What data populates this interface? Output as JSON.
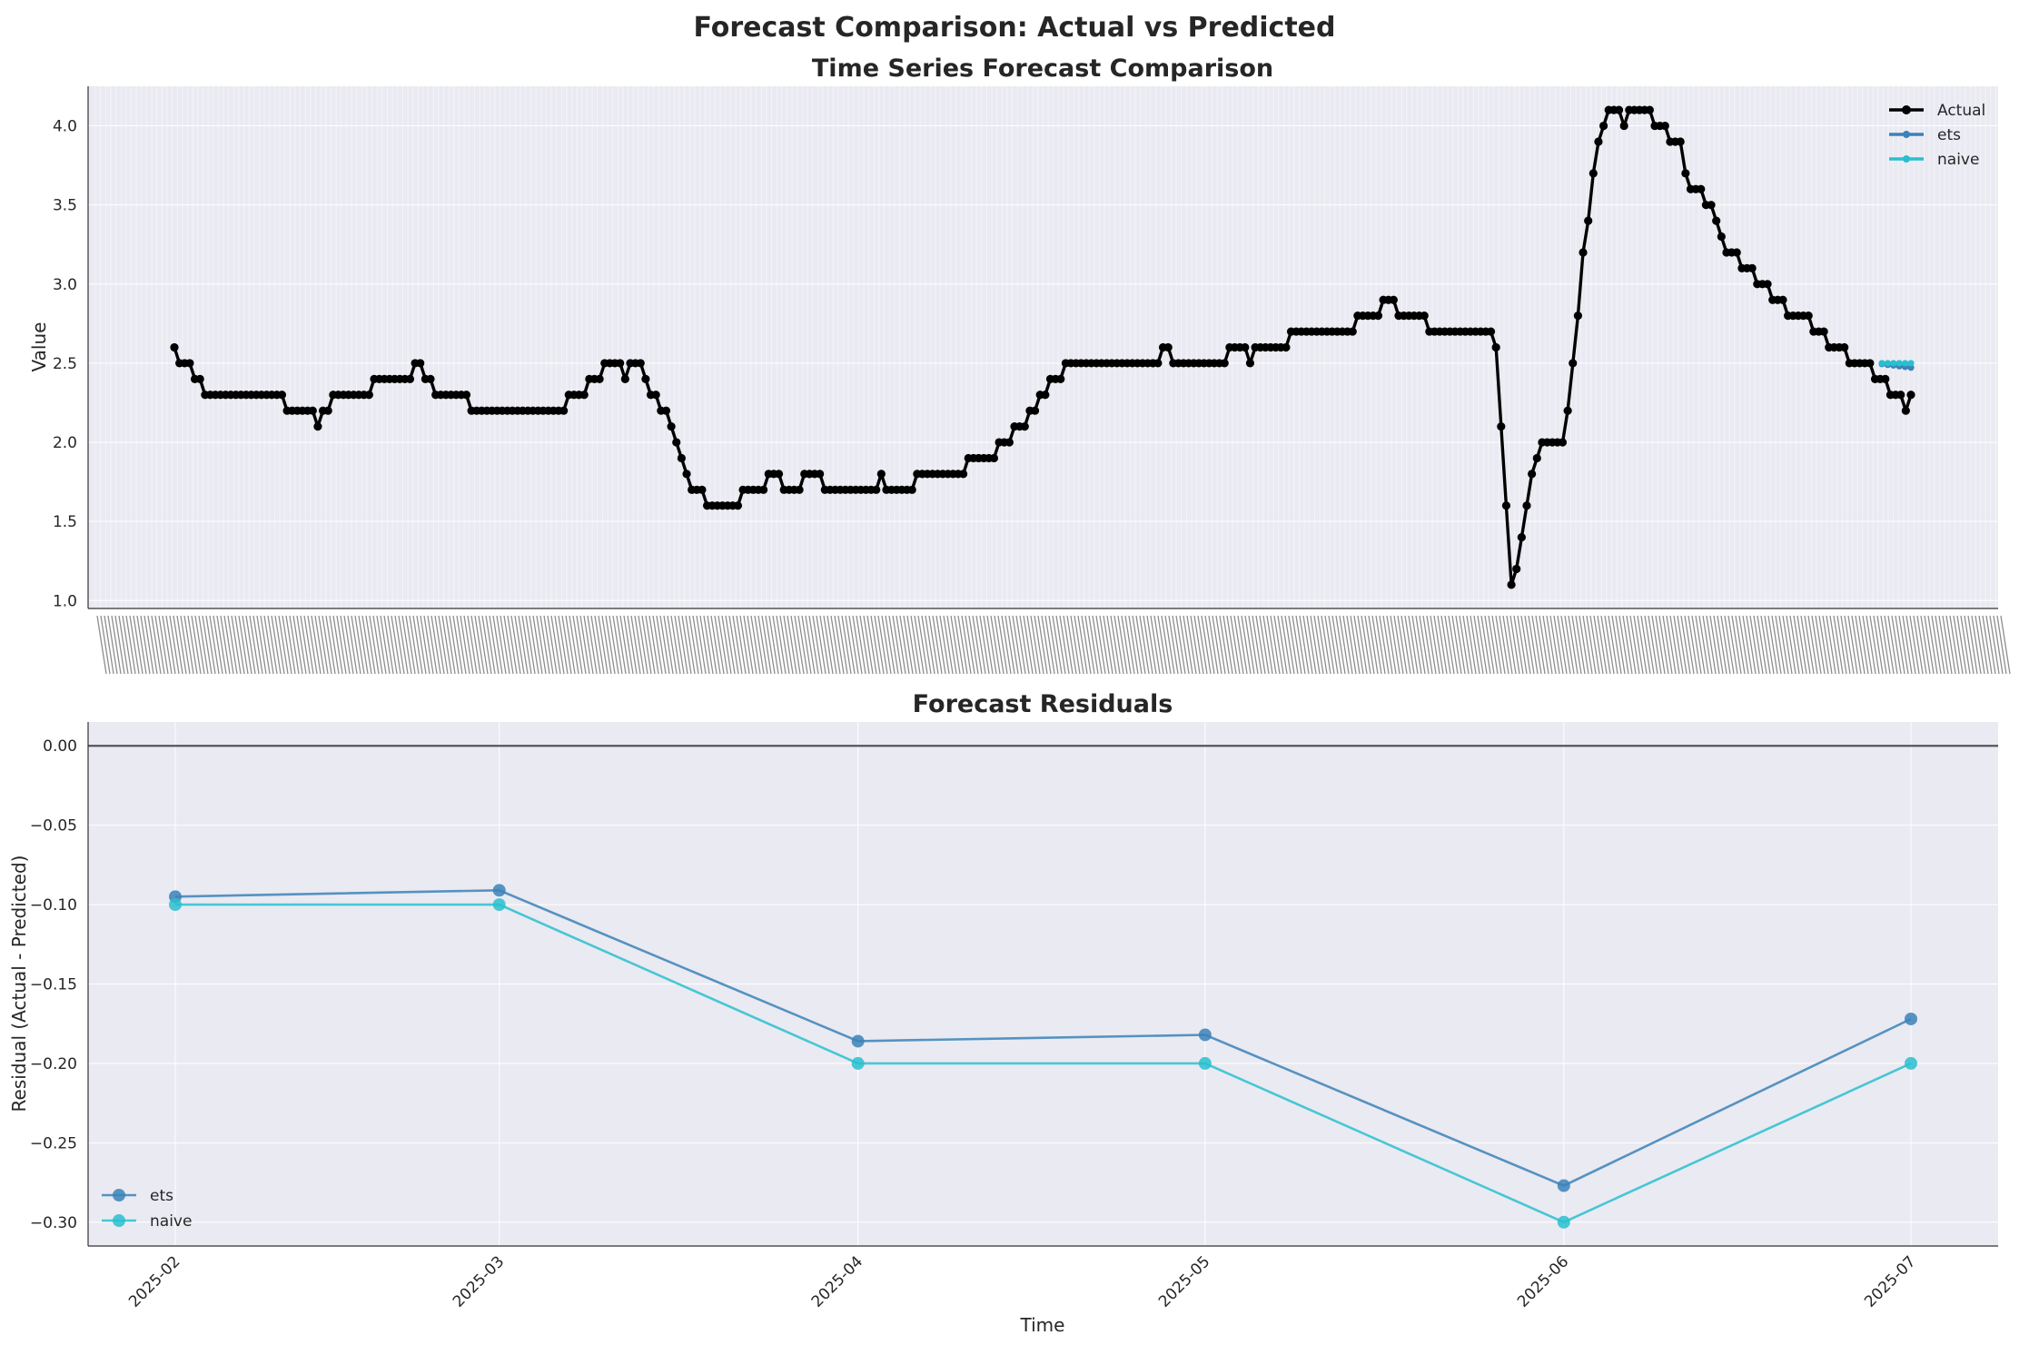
{
  "figure": {
    "suptitle": "Forecast Comparison: Actual vs Predicted"
  },
  "colors": {
    "actual": "#000000",
    "ets": "#3b82b8",
    "naive": "#29bfcf",
    "axes_bg": "#eaeaf2",
    "grid": "#ffffff",
    "zero_line": "#555555"
  },
  "chart_data": [
    {
      "type": "line",
      "title": "Time Series Forecast Comparison",
      "xlabel": "",
      "ylabel": "Value",
      "ylim": [
        0.95,
        4.25
      ],
      "yticks": [
        1.0,
        1.5,
        2.0,
        2.5,
        3.0,
        3.5,
        4.0
      ],
      "legend_position": "top-right",
      "x_tick_labels_note": "dense overlapping date labels",
      "series": [
        {
          "name": "Actual",
          "values": [
            2.6,
            2.5,
            2.5,
            2.5,
            2.4,
            2.4,
            2.3,
            2.3,
            2.3,
            2.3,
            2.3,
            2.3,
            2.3,
            2.3,
            2.3,
            2.3,
            2.3,
            2.3,
            2.3,
            2.3,
            2.3,
            2.3,
            2.2,
            2.2,
            2.2,
            2.2,
            2.2,
            2.2,
            2.1,
            2.2,
            2.2,
            2.3,
            2.3,
            2.3,
            2.3,
            2.3,
            2.3,
            2.3,
            2.3,
            2.4,
            2.4,
            2.4,
            2.4,
            2.4,
            2.4,
            2.4,
            2.4,
            2.5,
            2.5,
            2.4,
            2.4,
            2.3,
            2.3,
            2.3,
            2.3,
            2.3,
            2.3,
            2.3,
            2.2,
            2.2,
            2.2,
            2.2,
            2.2,
            2.2,
            2.2,
            2.2,
            2.2,
            2.2,
            2.2,
            2.2,
            2.2,
            2.2,
            2.2,
            2.2,
            2.2,
            2.2,
            2.2,
            2.3,
            2.3,
            2.3,
            2.3,
            2.4,
            2.4,
            2.4,
            2.5,
            2.5,
            2.5,
            2.5,
            2.4,
            2.5,
            2.5,
            2.5,
            2.4,
            2.3,
            2.3,
            2.2,
            2.2,
            2.1,
            2.0,
            1.9,
            1.8,
            1.7,
            1.7,
            1.7,
            1.6,
            1.6,
            1.6,
            1.6,
            1.6,
            1.6,
            1.6,
            1.7,
            1.7,
            1.7,
            1.7,
            1.7,
            1.8,
            1.8,
            1.8,
            1.7,
            1.7,
            1.7,
            1.7,
            1.8,
            1.8,
            1.8,
            1.8,
            1.7,
            1.7,
            1.7,
            1.7,
            1.7,
            1.7,
            1.7,
            1.7,
            1.7,
            1.7,
            1.7,
            1.8,
            1.7,
            1.7,
            1.7,
            1.7,
            1.7,
            1.7,
            1.8,
            1.8,
            1.8,
            1.8,
            1.8,
            1.8,
            1.8,
            1.8,
            1.8,
            1.8,
            1.9,
            1.9,
            1.9,
            1.9,
            1.9,
            1.9,
            2.0,
            2.0,
            2.0,
            2.1,
            2.1,
            2.1,
            2.2,
            2.2,
            2.3,
            2.3,
            2.4,
            2.4,
            2.4,
            2.5,
            2.5,
            2.5,
            2.5,
            2.5,
            2.5,
            2.5,
            2.5,
            2.5,
            2.5,
            2.5,
            2.5,
            2.5,
            2.5,
            2.5,
            2.5,
            2.5,
            2.5,
            2.5,
            2.6,
            2.6,
            2.5,
            2.5,
            2.5,
            2.5,
            2.5,
            2.5,
            2.5,
            2.5,
            2.5,
            2.5,
            2.5,
            2.6,
            2.6,
            2.6,
            2.6,
            2.5,
            2.6,
            2.6,
            2.6,
            2.6,
            2.6,
            2.6,
            2.6,
            2.7,
            2.7,
            2.7,
            2.7,
            2.7,
            2.7,
            2.7,
            2.7,
            2.7,
            2.7,
            2.7,
            2.7,
            2.7,
            2.8,
            2.8,
            2.8,
            2.8,
            2.8,
            2.9,
            2.9,
            2.9,
            2.8,
            2.8,
            2.8,
            2.8,
            2.8,
            2.8,
            2.7,
            2.7,
            2.7,
            2.7,
            2.7,
            2.7,
            2.7,
            2.7,
            2.7,
            2.7,
            2.7,
            2.7,
            2.7,
            2.6,
            2.1,
            1.6,
            1.1,
            1.2,
            1.4,
            1.6,
            1.8,
            1.9,
            2.0,
            2.0,
            2.0,
            2.0,
            2.0,
            2.2,
            2.5,
            2.8,
            3.2,
            3.4,
            3.7,
            3.9,
            4.0,
            4.1,
            4.1,
            4.1,
            4.0,
            4.1,
            4.1,
            4.1,
            4.1,
            4.1,
            4.0,
            4.0,
            4.0,
            3.9,
            3.9,
            3.9,
            3.7,
            3.6,
            3.6,
            3.6,
            3.5,
            3.5,
            3.4,
            3.3,
            3.2,
            3.2,
            3.2,
            3.1,
            3.1,
            3.1,
            3.0,
            3.0,
            3.0,
            2.9,
            2.9,
            2.9,
            2.8,
            2.8,
            2.8,
            2.8,
            2.8,
            2.7,
            2.7,
            2.7,
            2.6,
            2.6,
            2.6,
            2.6,
            2.5,
            2.5,
            2.5,
            2.5,
            2.5,
            2.4,
            2.4,
            2.4,
            2.3,
            2.3,
            2.3,
            2.2,
            2.3
          ]
        },
        {
          "name": "ets",
          "values": [
            2.495,
            2.49,
            2.486,
            2.481,
            2.477,
            2.472
          ]
        },
        {
          "name": "naive",
          "values": [
            2.5,
            2.5,
            2.5,
            2.5,
            2.5,
            2.5
          ]
        }
      ]
    },
    {
      "type": "line",
      "title": "Forecast Residuals",
      "xlabel": "Time",
      "ylabel": "Residual (Actual - Predicted)",
      "ylim": [
        -0.315,
        0.015
      ],
      "yticks": [
        0.0,
        -0.05,
        -0.1,
        -0.15,
        -0.2,
        -0.25,
        -0.3
      ],
      "ytick_labels": [
        "0.00",
        "−0.05",
        "−0.10",
        "−0.15",
        "−0.20",
        "−0.25",
        "−0.30"
      ],
      "x": [
        "2025-02",
        "2025-03",
        "2025-04",
        "2025-05",
        "2025-06",
        "2025-07"
      ],
      "x_days": [
        0,
        28,
        59,
        89,
        120,
        150
      ],
      "legend_position": "bottom-left",
      "series": [
        {
          "name": "ets",
          "values": [
            -0.095,
            -0.091,
            -0.186,
            -0.182,
            -0.277,
            -0.172
          ]
        },
        {
          "name": "naive",
          "values": [
            -0.1,
            -0.1,
            -0.2,
            -0.2,
            -0.3,
            -0.2
          ]
        }
      ]
    }
  ]
}
